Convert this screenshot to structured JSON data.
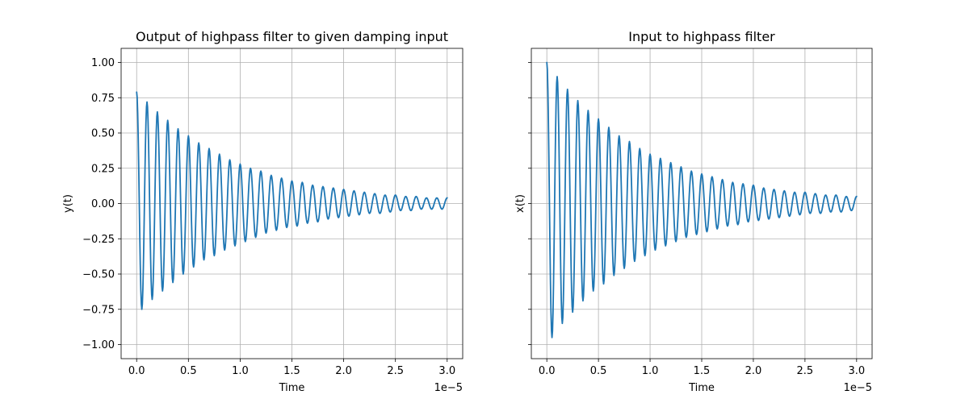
{
  "colors": {
    "series": "#1f77b4",
    "grid": "#b0b0b0",
    "background": "#ffffff"
  },
  "chart_data": [
    {
      "type": "line",
      "title": "Output of highpass filter to given damping input",
      "xlabel": "Time",
      "ylabel": "y(t)",
      "x_offset_label": "1e−5",
      "xlim": [
        -0.15,
        3.15
      ],
      "ylim": [
        -1.1,
        1.1
      ],
      "x_ticks": [
        0.0,
        0.5,
        1.0,
        1.5,
        2.0,
        2.5,
        3.0
      ],
      "x_tick_labels": [
        "0.0",
        "0.5",
        "1.0",
        "1.5",
        "2.0",
        "2.5",
        "3.0"
      ],
      "y_ticks": [
        -1.0,
        -0.75,
        -0.5,
        -0.25,
        0.0,
        0.25,
        0.5,
        0.75,
        1.0
      ],
      "y_tick_labels": [
        "−1.00",
        "−0.75",
        "−0.50",
        "−0.25",
        "0.00",
        "0.25",
        "0.50",
        "0.75",
        "1.00"
      ],
      "show_y_tick_labels": true,
      "grid": true,
      "series": [
        {
          "x": [
            0.0,
            0.05,
            0.1,
            0.15,
            0.2,
            0.25,
            0.3,
            0.35,
            0.4,
            0.45,
            0.5,
            0.55,
            0.6,
            0.65,
            0.7,
            0.75,
            0.8,
            0.85,
            0.9,
            0.95,
            1.0,
            1.05,
            1.1,
            1.15,
            1.2,
            1.25,
            1.3,
            1.35,
            1.4,
            1.45,
            1.5,
            1.55,
            1.6,
            1.65,
            1.7,
            1.75,
            1.8,
            1.85,
            1.9,
            1.95,
            2.0,
            2.05,
            2.1,
            2.15,
            2.2,
            2.25,
            2.3,
            2.35,
            2.4,
            2.45,
            2.5,
            2.55,
            2.6,
            2.65,
            2.7,
            2.75,
            2.8,
            2.85,
            2.9,
            2.95,
            3.0
          ],
          "y": [
            0.79,
            -0.75,
            0.72,
            -0.68,
            0.65,
            -0.62,
            0.59,
            -0.56,
            0.53,
            -0.5,
            0.48,
            -0.45,
            0.43,
            -0.4,
            0.39,
            -0.37,
            0.35,
            -0.33,
            0.31,
            -0.3,
            0.28,
            -0.27,
            0.25,
            -0.24,
            0.23,
            -0.21,
            0.2,
            -0.19,
            0.18,
            -0.17,
            0.16,
            -0.16,
            0.15,
            -0.14,
            0.13,
            -0.13,
            0.12,
            -0.11,
            0.11,
            -0.1,
            0.1,
            -0.09,
            0.09,
            -0.08,
            0.08,
            -0.07,
            0.07,
            -0.07,
            0.06,
            -0.06,
            0.06,
            -0.05,
            0.05,
            -0.05,
            0.05,
            -0.04,
            0.04,
            -0.04,
            0.04,
            -0.04,
            0.04
          ]
        }
      ]
    },
    {
      "type": "line",
      "title": "Input to highpass filter",
      "xlabel": "Time",
      "ylabel": "x(t)",
      "x_offset_label": "1e−5",
      "xlim": [
        -0.15,
        3.15
      ],
      "ylim": [
        -1.1,
        1.1
      ],
      "x_ticks": [
        0.0,
        0.5,
        1.0,
        1.5,
        2.0,
        2.5,
        3.0
      ],
      "x_tick_labels": [
        "0.0",
        "0.5",
        "1.0",
        "1.5",
        "2.0",
        "2.5",
        "3.0"
      ],
      "y_ticks": [
        -1.0,
        -0.75,
        -0.5,
        -0.25,
        0.0,
        0.25,
        0.5,
        0.75,
        1.0
      ],
      "y_tick_labels": [],
      "show_y_tick_labels": false,
      "grid": true,
      "series": [
        {
          "x": [
            0.0,
            0.05,
            0.1,
            0.15,
            0.2,
            0.25,
            0.3,
            0.35,
            0.4,
            0.45,
            0.5,
            0.55,
            0.6,
            0.65,
            0.7,
            0.75,
            0.8,
            0.85,
            0.9,
            0.95,
            1.0,
            1.05,
            1.1,
            1.15,
            1.2,
            1.25,
            1.3,
            1.35,
            1.4,
            1.45,
            1.5,
            1.55,
            1.6,
            1.65,
            1.7,
            1.75,
            1.8,
            1.85,
            1.9,
            1.95,
            2.0,
            2.05,
            2.1,
            2.15,
            2.2,
            2.25,
            2.3,
            2.35,
            2.4,
            2.45,
            2.5,
            2.55,
            2.6,
            2.65,
            2.7,
            2.75,
            2.8,
            2.85,
            2.9,
            2.95,
            3.0
          ],
          "y": [
            1.0,
            -0.95,
            0.9,
            -0.85,
            0.81,
            -0.77,
            0.73,
            -0.69,
            0.66,
            -0.62,
            0.6,
            -0.57,
            0.54,
            -0.51,
            0.48,
            -0.46,
            0.44,
            -0.41,
            0.39,
            -0.37,
            0.35,
            -0.33,
            0.32,
            -0.3,
            0.29,
            -0.27,
            0.26,
            -0.24,
            0.23,
            -0.22,
            0.21,
            -0.2,
            0.19,
            -0.18,
            0.17,
            -0.16,
            0.15,
            -0.15,
            0.14,
            -0.13,
            0.13,
            -0.12,
            0.11,
            -0.11,
            0.1,
            -0.1,
            0.09,
            -0.09,
            0.08,
            -0.08,
            0.08,
            -0.07,
            0.07,
            -0.07,
            0.06,
            -0.06,
            0.06,
            -0.06,
            0.05,
            -0.05,
            0.05
          ]
        }
      ]
    }
  ]
}
